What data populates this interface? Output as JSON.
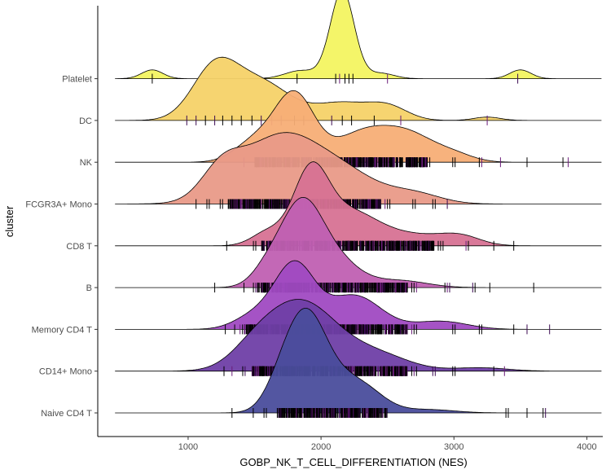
{
  "chart_data": {
    "type": "ridgeline",
    "xlabel": "GOBP_NK_T_CELL_DIFFERENTIATION (NES)",
    "ylabel": "cluster",
    "xlim": [
      320,
      4120
    ],
    "xticks": [
      1000,
      2000,
      3000,
      4000
    ],
    "grid": false,
    "legend": "none",
    "categories": [
      "Naive CD4 T",
      "CD14+ Mono",
      "Memory CD4 T",
      "B",
      "CD8 T",
      "FCGR3A+ Mono",
      "NK",
      "DC",
      "Platelet"
    ],
    "series": [
      {
        "label": "Naive CD4 T",
        "color": "#4a4d9c",
        "range": [
          450,
          4110
        ],
        "peaks": [
          [
            1880,
            1.0,
            140
          ],
          [
            2020,
            0.55,
            200
          ],
          [
            2330,
            0.28,
            160
          ],
          [
            1700,
            0.35,
            120
          ],
          [
            2800,
            0.05,
            200
          ]
        ],
        "rugs": [
          [
            1330,
            1
          ],
          [
            1490,
            1
          ],
          [
            1580,
            2
          ],
          [
            1680,
            2
          ],
          [
            3400,
            2
          ],
          [
            3550,
            1
          ],
          [
            3680,
            2
          ]
        ],
        "rug_core": [
          1680,
          2500
        ]
      },
      {
        "label": "CD14+ Mono",
        "color": "#6f3fa6",
        "range": [
          450,
          4110
        ],
        "peaks": [
          [
            1850,
            1.0,
            260
          ],
          [
            1500,
            0.25,
            180
          ],
          [
            2400,
            0.25,
            250
          ],
          [
            3200,
            0.05,
            200
          ]
        ],
        "rugs": [
          [
            1270,
            1
          ],
          [
            1330,
            1
          ],
          [
            1420,
            2
          ],
          [
            2700,
            3
          ],
          [
            2850,
            2
          ],
          [
            3000,
            2
          ],
          [
            3300,
            1
          ],
          [
            3380,
            1
          ]
        ],
        "rug_core": [
          1480,
          2650
        ]
      },
      {
        "label": "Memory CD4 T",
        "color": "#a04ac2",
        "range": [
          450,
          4110
        ],
        "peaks": [
          [
            1800,
            0.95,
            150
          ],
          [
            2250,
            0.5,
            200
          ],
          [
            1500,
            0.2,
            150
          ],
          [
            2900,
            0.12,
            200
          ]
        ],
        "rugs": [
          [
            1280,
            1
          ],
          [
            1350,
            1
          ],
          [
            1400,
            2
          ],
          [
            2700,
            3
          ],
          [
            3000,
            2
          ],
          [
            3200,
            2
          ],
          [
            3450,
            1
          ],
          [
            3550,
            1
          ],
          [
            3720,
            1
          ]
        ],
        "rug_core": [
          1420,
          2650
        ]
      },
      {
        "label": "B",
        "color": "#c060b2",
        "range": [
          450,
          4110
        ],
        "peaks": [
          [
            1840,
            1.0,
            150
          ],
          [
            2050,
            0.5,
            200
          ],
          [
            2600,
            0.1,
            200
          ],
          [
            1600,
            0.25,
            120
          ]
        ],
        "rugs": [
          [
            1200,
            1
          ],
          [
            1420,
            1
          ],
          [
            1500,
            2
          ],
          [
            2700,
            3
          ],
          [
            2950,
            3
          ],
          [
            3150,
            2
          ],
          [
            3270,
            1
          ],
          [
            3600,
            1
          ]
        ],
        "rug_core": [
          1520,
          2650
        ]
      },
      {
        "label": "CD8 T",
        "color": "#d77294",
        "range": [
          450,
          4110
        ],
        "peaks": [
          [
            1920,
            1.0,
            130
          ],
          [
            2200,
            0.5,
            220
          ],
          [
            2700,
            0.15,
            250
          ],
          [
            3050,
            0.12,
            150
          ],
          [
            1600,
            0.2,
            120
          ]
        ],
        "rugs": [
          [
            1290,
            1
          ],
          [
            1500,
            2
          ],
          [
            2900,
            3
          ],
          [
            3100,
            2
          ],
          [
            3300,
            1
          ],
          [
            3450,
            1
          ]
        ],
        "rug_core": [
          1550,
          2850
        ]
      },
      {
        "label": "FCGR3A+ Mono",
        "color": "#e99a88",
        "range": [
          450,
          4110
        ],
        "peaks": [
          [
            1700,
            1.0,
            300
          ],
          [
            1250,
            0.4,
            150
          ],
          [
            2200,
            0.35,
            250
          ],
          [
            2700,
            0.15,
            200
          ]
        ],
        "rugs": [
          [
            1060,
            1
          ],
          [
            1150,
            2
          ],
          [
            1250,
            2
          ],
          [
            2500,
            3
          ],
          [
            2700,
            2
          ],
          [
            2850,
            2
          ],
          [
            2950,
            1
          ]
        ],
        "rug_core": [
          1300,
          2450
        ]
      },
      {
        "label": "NK",
        "color": "#f7ae76",
        "range": [
          450,
          4110
        ],
        "peaks": [
          [
            1800,
            1.0,
            150
          ],
          [
            2300,
            0.4,
            200
          ],
          [
            2650,
            0.4,
            200
          ],
          [
            3000,
            0.1,
            150
          ],
          [
            1500,
            0.3,
            150
          ]
        ],
        "rugs": [
          [
            1420,
            1
          ],
          [
            2800,
            3
          ],
          [
            3000,
            2
          ],
          [
            3200,
            2
          ],
          [
            3350,
            1
          ],
          [
            3550,
            1
          ],
          [
            3820,
            1
          ],
          [
            3860,
            1
          ]
        ],
        "rug_core": [
          1500,
          2800
        ]
      },
      {
        "label": "DC",
        "color": "#f5d268",
        "range": [
          450,
          4110
        ],
        "peaks": [
          [
            1200,
            0.75,
            170
          ],
          [
            1550,
            0.55,
            220
          ],
          [
            2150,
            0.25,
            200
          ],
          [
            2500,
            0.2,
            150
          ],
          [
            3250,
            0.05,
            100
          ]
        ],
        "rugs": [
          [
            990,
            1
          ],
          [
            1060,
            1
          ],
          [
            1130,
            1
          ],
          [
            1200,
            1
          ],
          [
            1260,
            1
          ],
          [
            1330,
            1
          ],
          [
            1400,
            1
          ],
          [
            1480,
            1
          ],
          [
            1550,
            1
          ],
          [
            1630,
            1
          ],
          [
            1700,
            1
          ],
          [
            1800,
            1
          ],
          [
            1870,
            1
          ],
          [
            2080,
            1
          ],
          [
            2160,
            1
          ],
          [
            2230,
            1
          ],
          [
            2400,
            1
          ],
          [
            2600,
            1
          ],
          [
            3250,
            1
          ]
        ],
        "rug_core": [
          0,
          0
        ]
      },
      {
        "label": "Platelet",
        "color": "#f3f461",
        "range": [
          450,
          4110
        ],
        "peaks": [
          [
            2160,
            1.3,
            90
          ],
          [
            730,
            0.13,
            80
          ],
          [
            3500,
            0.13,
            80
          ],
          [
            1850,
            0.12,
            120
          ],
          [
            2450,
            0.08,
            100
          ]
        ],
        "rugs": [
          [
            730,
            1
          ],
          [
            1820,
            1
          ],
          [
            2110,
            1
          ],
          [
            2140,
            1
          ],
          [
            2180,
            1
          ],
          [
            2210,
            1
          ],
          [
            2240,
            1
          ],
          [
            2500,
            1
          ],
          [
            3480,
            1
          ]
        ],
        "rug_core": [
          0,
          0
        ]
      }
    ]
  }
}
